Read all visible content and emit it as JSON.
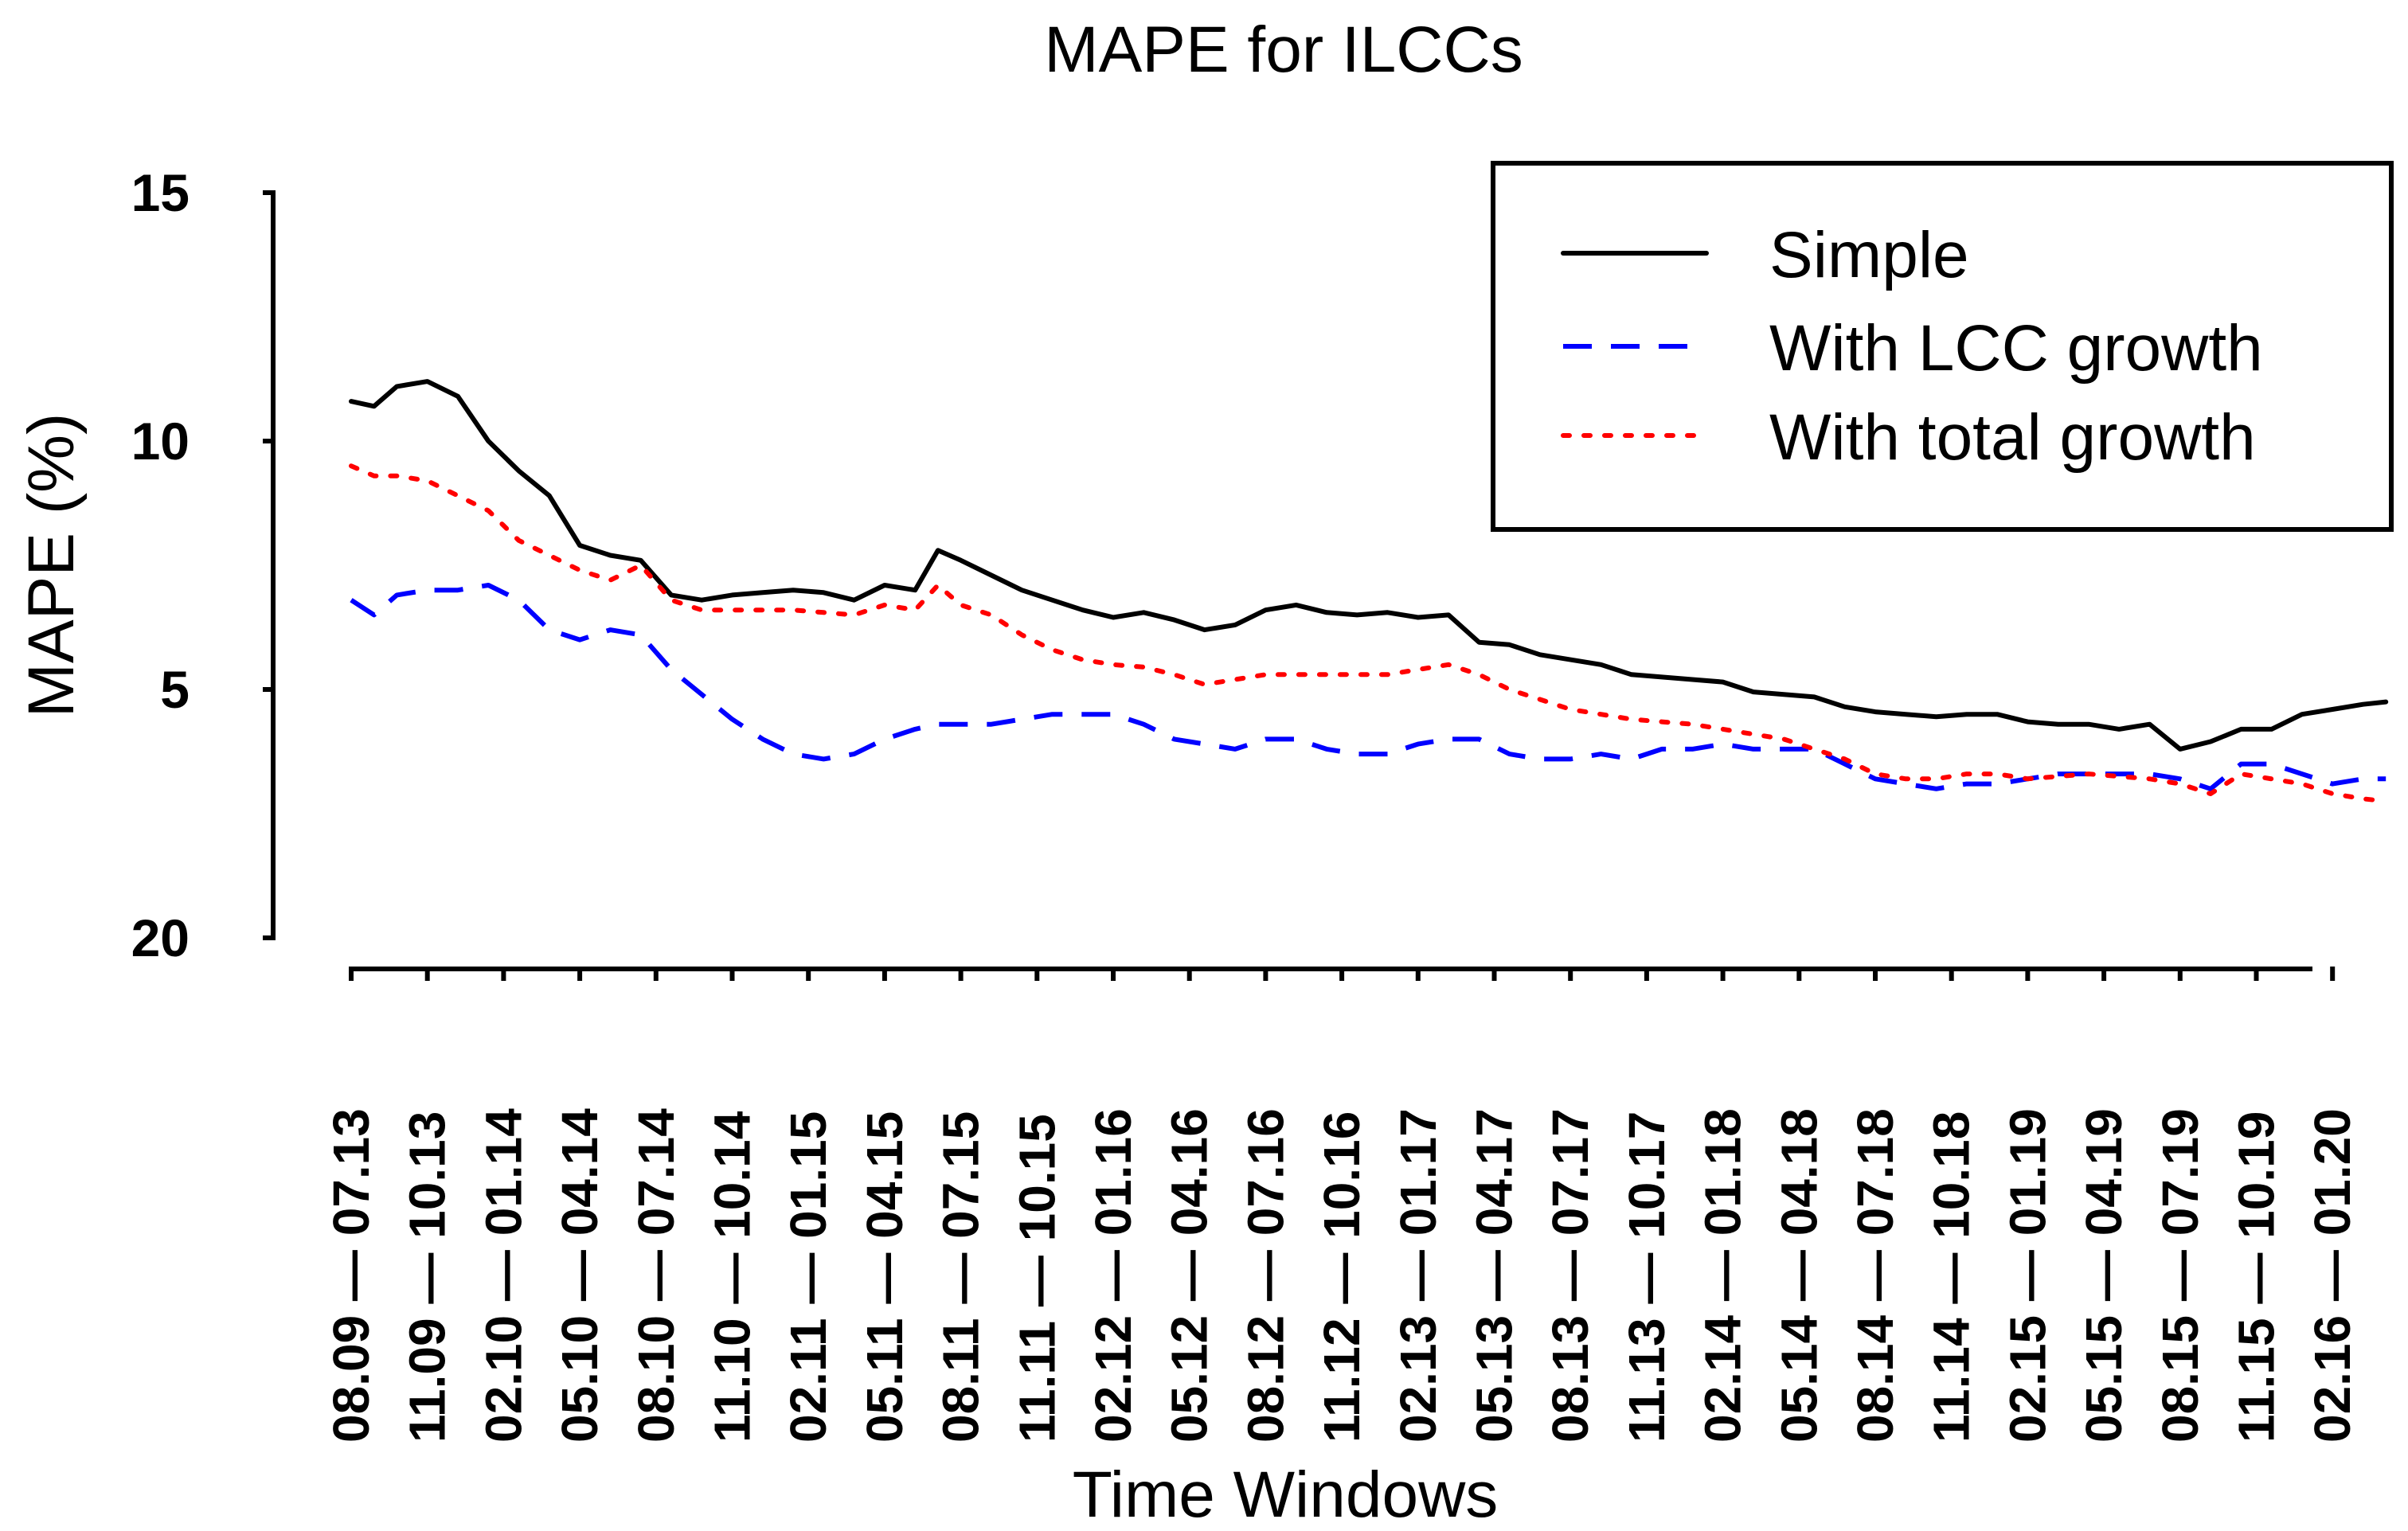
{
  "chart_data": {
    "type": "line",
    "title": "MAPE for ILCCs",
    "xlabel": "Time Windows",
    "ylabel": "MAPE (%)",
    "yticks": [
      15,
      10,
      5,
      20
    ],
    "ylim": [
      0,
      15
    ],
    "grid": false,
    "legend_position": "top-right",
    "categories": [
      "08.09 — 07.13",
      "11.09 — 10.13",
      "02.10 — 01.14",
      "05.10 — 04.14",
      "08.10 — 07.14",
      "11.10 — 10.14",
      "02.11 — 01.15",
      "05.11 — 04.15",
      "08.11 — 07.15",
      "11.11 — 10.15",
      "02.12 — 01.16",
      "05.12 — 04.16",
      "08.12 — 07.16",
      "11.12 — 10.16",
      "02.13 — 01.17",
      "05.13 — 04.17",
      "08.13 — 07.17",
      "11.13 — 10.17",
      "02.14 — 01.18",
      "05.14 — 04.18",
      "08.14 — 07.18",
      "11.14 — 10.18",
      "02.15 — 01.19",
      "05.15 — 04.19",
      "08.15 — 07.19",
      "11.15 — 10.19",
      "02.16 — 01.20"
    ],
    "series": [
      {
        "name": "Simple",
        "color": "#000000",
        "dash": "solid",
        "points": [
          [
            0,
            10.8
          ],
          [
            0.3,
            10.7
          ],
          [
            0.6,
            11.1
          ],
          [
            1,
            11.2
          ],
          [
            1.4,
            10.9
          ],
          [
            1.8,
            10.0
          ],
          [
            2.2,
            9.4
          ],
          [
            2.6,
            8.9
          ],
          [
            3,
            7.9
          ],
          [
            3.4,
            7.7
          ],
          [
            3.8,
            7.6
          ],
          [
            4.2,
            6.9
          ],
          [
            4.6,
            6.8
          ],
          [
            5,
            6.9
          ],
          [
            5.4,
            6.95
          ],
          [
            5.8,
            7.0
          ],
          [
            6.2,
            6.95
          ],
          [
            6.6,
            6.8
          ],
          [
            7,
            7.1
          ],
          [
            7.4,
            7.0
          ],
          [
            7.7,
            7.8
          ],
          [
            8,
            7.6
          ],
          [
            8.4,
            7.3
          ],
          [
            8.8,
            7.0
          ],
          [
            9.2,
            6.8
          ],
          [
            9.6,
            6.6
          ],
          [
            10,
            6.45
          ],
          [
            10.4,
            6.55
          ],
          [
            10.8,
            6.4
          ],
          [
            11.2,
            6.2
          ],
          [
            11.6,
            6.3
          ],
          [
            12,
            6.6
          ],
          [
            12.4,
            6.7
          ],
          [
            12.8,
            6.55
          ],
          [
            13.2,
            6.5
          ],
          [
            13.6,
            6.55
          ],
          [
            14,
            6.45
          ],
          [
            14.4,
            6.5
          ],
          [
            14.8,
            5.95
          ],
          [
            15.2,
            5.9
          ],
          [
            15.6,
            5.7
          ],
          [
            16,
            5.6
          ],
          [
            16.4,
            5.5
          ],
          [
            16.8,
            5.3
          ],
          [
            17.2,
            5.25
          ],
          [
            17.6,
            5.2
          ],
          [
            18,
            5.15
          ],
          [
            18.4,
            4.95
          ],
          [
            18.8,
            4.9
          ],
          [
            19.2,
            4.85
          ],
          [
            19.6,
            4.65
          ],
          [
            20,
            4.55
          ],
          [
            20.4,
            4.5
          ],
          [
            20.8,
            4.45
          ],
          [
            21.2,
            4.5
          ],
          [
            21.6,
            4.5
          ],
          [
            22,
            4.35
          ],
          [
            22.4,
            4.3
          ],
          [
            22.8,
            4.3
          ],
          [
            23.2,
            4.2
          ],
          [
            23.6,
            4.3
          ],
          [
            24,
            3.8
          ],
          [
            24.4,
            3.95
          ],
          [
            24.8,
            4.2
          ],
          [
            25.2,
            4.2
          ],
          [
            25.6,
            4.5
          ],
          [
            26,
            4.6
          ],
          [
            26.4,
            4.7
          ],
          [
            26.7,
            4.75
          ]
        ]
      },
      {
        "name": "With LCC growth",
        "color": "#0000ff",
        "dash": "dashed",
        "points": [
          [
            0,
            6.8
          ],
          [
            0.3,
            6.5
          ],
          [
            0.6,
            6.9
          ],
          [
            1,
            7.0
          ],
          [
            1.4,
            7.0
          ],
          [
            1.8,
            7.1
          ],
          [
            2.2,
            6.8
          ],
          [
            2.6,
            6.2
          ],
          [
            3,
            6.0
          ],
          [
            3.4,
            6.2
          ],
          [
            3.8,
            6.1
          ],
          [
            4.2,
            5.4
          ],
          [
            4.6,
            4.9
          ],
          [
            5,
            4.4
          ],
          [
            5.4,
            4.0
          ],
          [
            5.8,
            3.7
          ],
          [
            6.2,
            3.6
          ],
          [
            6.6,
            3.7
          ],
          [
            7,
            4.0
          ],
          [
            7.4,
            4.2
          ],
          [
            7.7,
            4.3
          ],
          [
            8,
            4.3
          ],
          [
            8.4,
            4.3
          ],
          [
            8.8,
            4.4
          ],
          [
            9.2,
            4.5
          ],
          [
            9.6,
            4.5
          ],
          [
            10,
            4.5
          ],
          [
            10.4,
            4.3
          ],
          [
            10.8,
            4.0
          ],
          [
            11.2,
            3.9
          ],
          [
            11.6,
            3.8
          ],
          [
            12,
            4.0
          ],
          [
            12.4,
            4.0
          ],
          [
            12.8,
            3.8
          ],
          [
            13.2,
            3.7
          ],
          [
            13.6,
            3.7
          ],
          [
            14,
            3.9
          ],
          [
            14.4,
            4.0
          ],
          [
            14.8,
            4.0
          ],
          [
            15.2,
            3.7
          ],
          [
            15.6,
            3.6
          ],
          [
            16,
            3.6
          ],
          [
            16.4,
            3.7
          ],
          [
            16.8,
            3.6
          ],
          [
            17.2,
            3.8
          ],
          [
            17.6,
            3.8
          ],
          [
            18,
            3.9
          ],
          [
            18.4,
            3.8
          ],
          [
            18.8,
            3.8
          ],
          [
            19.2,
            3.8
          ],
          [
            19.6,
            3.5
          ],
          [
            20,
            3.2
          ],
          [
            20.4,
            3.1
          ],
          [
            20.8,
            3.0
          ],
          [
            21.2,
            3.1
          ],
          [
            21.6,
            3.1
          ],
          [
            22,
            3.2
          ],
          [
            22.4,
            3.3
          ],
          [
            22.8,
            3.3
          ],
          [
            23.2,
            3.3
          ],
          [
            23.6,
            3.3
          ],
          [
            24,
            3.2
          ],
          [
            24.4,
            3.0
          ],
          [
            24.8,
            3.5
          ],
          [
            25.2,
            3.5
          ],
          [
            25.6,
            3.3
          ],
          [
            26,
            3.1
          ],
          [
            26.4,
            3.2
          ],
          [
            26.7,
            3.2
          ]
        ]
      },
      {
        "name": "With total growth",
        "color": "#ff0000",
        "dash": "dotted",
        "points": [
          [
            0,
            9.5
          ],
          [
            0.3,
            9.3
          ],
          [
            0.6,
            9.3
          ],
          [
            1,
            9.2
          ],
          [
            1.4,
            8.9
          ],
          [
            1.8,
            8.6
          ],
          [
            2.2,
            8.0
          ],
          [
            2.6,
            7.7
          ],
          [
            3,
            7.4
          ],
          [
            3.4,
            7.2
          ],
          [
            3.8,
            7.5
          ],
          [
            4.2,
            6.8
          ],
          [
            4.6,
            6.6
          ],
          [
            5,
            6.6
          ],
          [
            5.4,
            6.6
          ],
          [
            5.8,
            6.6
          ],
          [
            6.2,
            6.55
          ],
          [
            6.6,
            6.5
          ],
          [
            7,
            6.7
          ],
          [
            7.4,
            6.6
          ],
          [
            7.7,
            7.1
          ],
          [
            8,
            6.7
          ],
          [
            8.4,
            6.5
          ],
          [
            8.8,
            6.1
          ],
          [
            9.2,
            5.8
          ],
          [
            9.6,
            5.6
          ],
          [
            10,
            5.5
          ],
          [
            10.4,
            5.45
          ],
          [
            10.8,
            5.3
          ],
          [
            11.2,
            5.1
          ],
          [
            11.6,
            5.2
          ],
          [
            12,
            5.3
          ],
          [
            12.4,
            5.3
          ],
          [
            12.8,
            5.3
          ],
          [
            13.2,
            5.3
          ],
          [
            13.6,
            5.3
          ],
          [
            14,
            5.4
          ],
          [
            14.4,
            5.5
          ],
          [
            14.8,
            5.3
          ],
          [
            15.2,
            5.0
          ],
          [
            15.6,
            4.8
          ],
          [
            16,
            4.6
          ],
          [
            16.4,
            4.5
          ],
          [
            16.8,
            4.4
          ],
          [
            17.2,
            4.35
          ],
          [
            17.6,
            4.3
          ],
          [
            18,
            4.2
          ],
          [
            18.4,
            4.1
          ],
          [
            18.8,
            4.0
          ],
          [
            19.2,
            3.8
          ],
          [
            19.6,
            3.6
          ],
          [
            20,
            3.3
          ],
          [
            20.4,
            3.2
          ],
          [
            20.8,
            3.2
          ],
          [
            21.2,
            3.3
          ],
          [
            21.6,
            3.3
          ],
          [
            22,
            3.2
          ],
          [
            22.4,
            3.25
          ],
          [
            22.8,
            3.3
          ],
          [
            23.2,
            3.25
          ],
          [
            23.6,
            3.2
          ],
          [
            24,
            3.1
          ],
          [
            24.4,
            2.9
          ],
          [
            24.8,
            3.3
          ],
          [
            25.2,
            3.2
          ],
          [
            25.6,
            3.1
          ],
          [
            26,
            2.9
          ],
          [
            26.4,
            2.8
          ],
          [
            26.7,
            2.75
          ]
        ]
      }
    ]
  }
}
